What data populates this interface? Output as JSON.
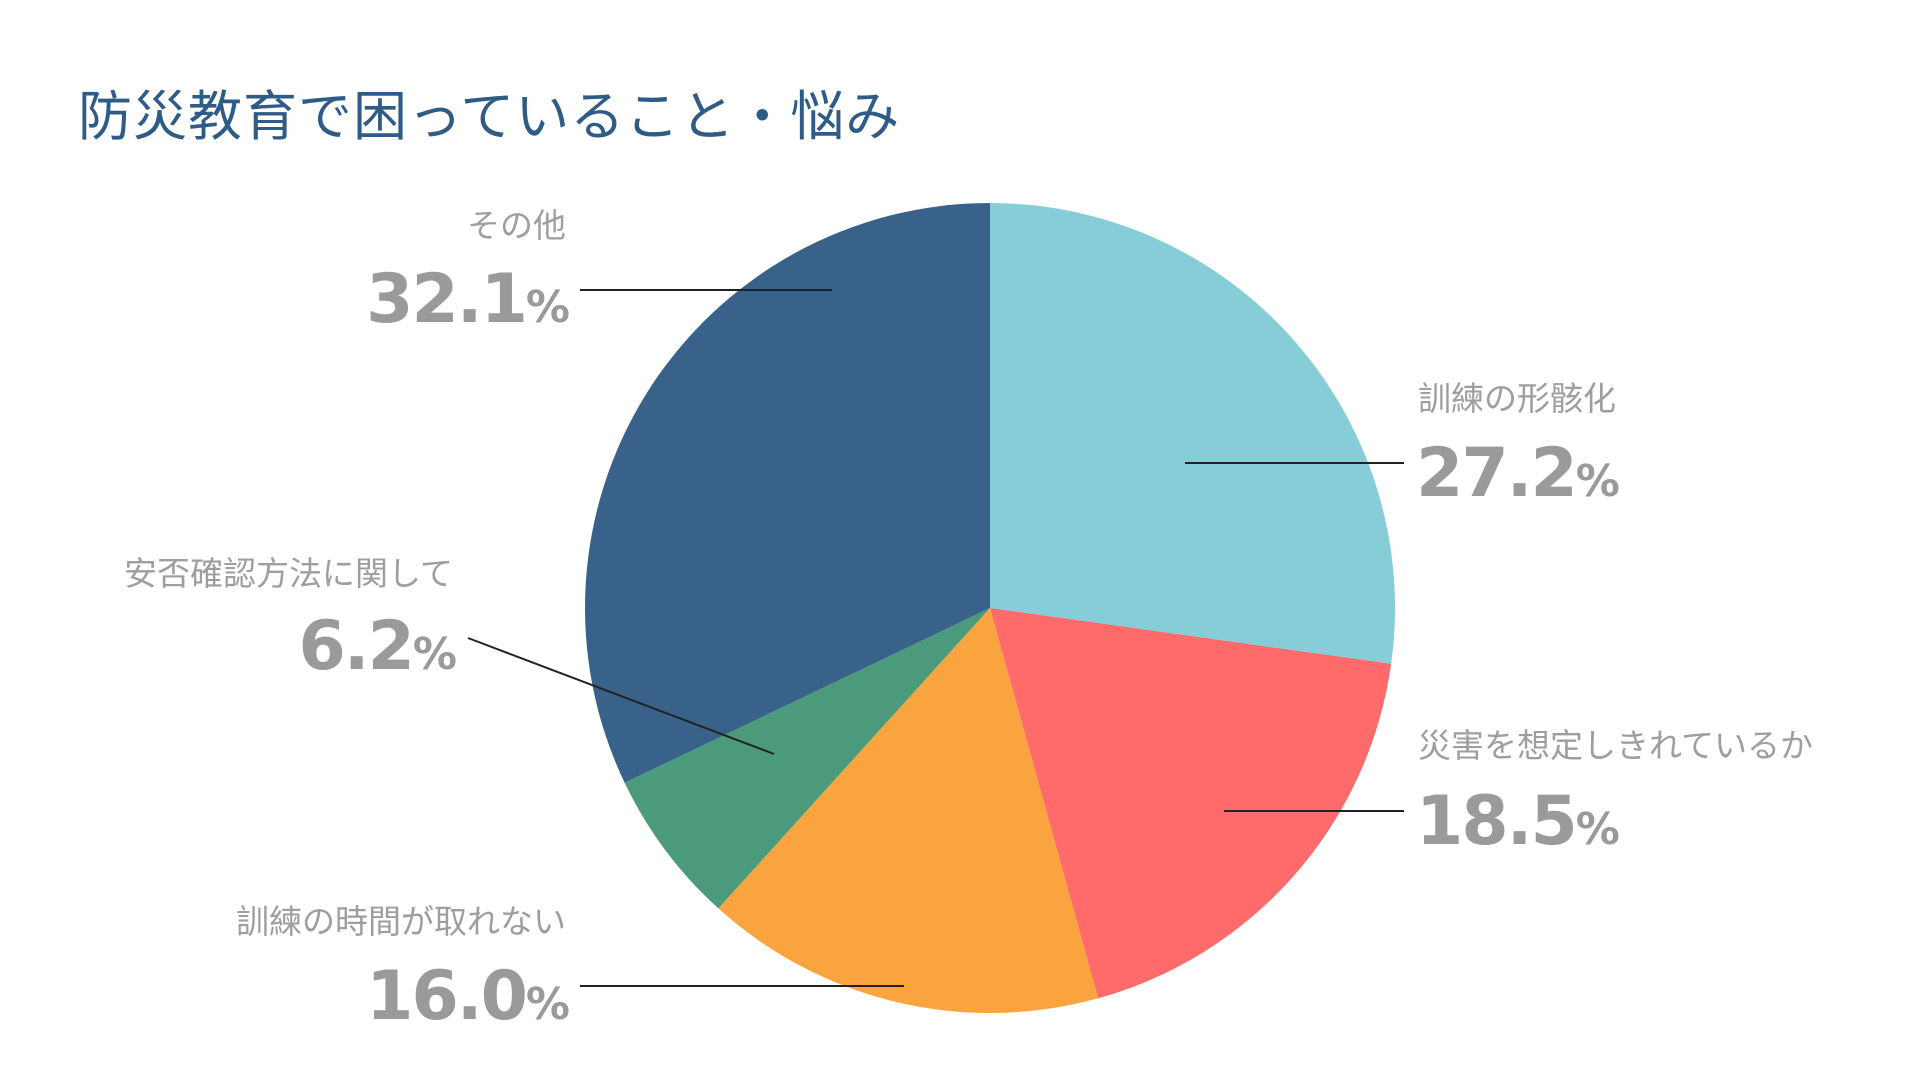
{
  "chart_data": {
    "type": "pie",
    "title": "防災教育で困っていること・悩み",
    "start_angle": "12 o'clock",
    "direction": "clockwise",
    "unit": "%",
    "slices": [
      {
        "label": "訓練の形骸化",
        "value": 27.2,
        "value_text": "27.2",
        "color": "#86cdd7",
        "label_side": "right"
      },
      {
        "label": "災害を想定しきれているか",
        "value": 18.5,
        "value_text": "18.5",
        "color": "#ff6b6b",
        "label_side": "right"
      },
      {
        "label": "訓練の時間が取れない",
        "value": 16.0,
        "value_text": "16.0",
        "color": "#f9a43e",
        "label_side": "left"
      },
      {
        "label": "安否確認方法に関して",
        "value": 6.2,
        "value_text": "6.2",
        "color": "#4a9a7b",
        "label_side": "left"
      },
      {
        "label": "その他",
        "value": 32.1,
        "value_text": "32.1",
        "color": "#386289",
        "label_side": "left"
      }
    ]
  }
}
